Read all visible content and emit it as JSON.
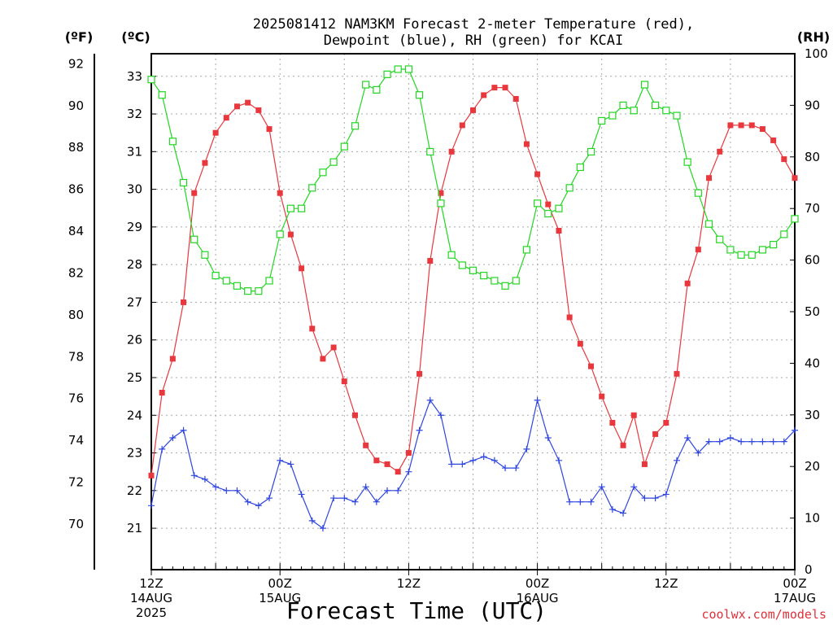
{
  "title": {
    "line1": "2025081412 NAM3KM Forecast 2-meter Temperature (red),",
    "line2": "Dewpoint (blue), RH (green) for KCAI"
  },
  "units": {
    "fahrenheit": "(ºF)",
    "celsius": "(ºC)",
    "rh": "(RH)"
  },
  "xlabel": "Forecast Time (UTC)",
  "credit": "coolwx.com/models",
  "colors": {
    "temperature": "#e8383d",
    "dewpoint": "#2e46e0",
    "rh": "#22d622",
    "grid": "#aaaaaa",
    "axis": "#000000"
  },
  "chart_data": {
    "type": "line",
    "x_hours": [
      0,
      1,
      2,
      3,
      4,
      5,
      6,
      7,
      8,
      9,
      10,
      11,
      12,
      13,
      14,
      15,
      16,
      17,
      18,
      19,
      20,
      21,
      22,
      23,
      24,
      25,
      26,
      27,
      28,
      29,
      30,
      31,
      32,
      33,
      34,
      35,
      36,
      37,
      38,
      39,
      40,
      41,
      42,
      43,
      44,
      45,
      46,
      47,
      48,
      49,
      50,
      51,
      52,
      53,
      54,
      55,
      56,
      57,
      58,
      59,
      60
    ],
    "x_range_hours": [
      0,
      60
    ],
    "x_ticks": [
      {
        "hour": 0,
        "line1": "12Z",
        "line2": "14AUG",
        "line3": "2025"
      },
      {
        "hour": 12,
        "line1": "00Z",
        "line2": "15AUG",
        "line3": ""
      },
      {
        "hour": 24,
        "line1": "12Z",
        "line2": "",
        "line3": ""
      },
      {
        "hour": 36,
        "line1": "00Z",
        "line2": "16AUG",
        "line3": ""
      },
      {
        "hour": 48,
        "line1": "12Z",
        "line2": "",
        "line3": ""
      },
      {
        "hour": 60,
        "line1": "00Z",
        "line2": "17AUG",
        "line3": ""
      }
    ],
    "celsius_axis": {
      "range": [
        19.9,
        33.6
      ],
      "ticks": [
        21,
        22,
        23,
        24,
        25,
        26,
        27,
        28,
        29,
        30,
        31,
        32,
        33
      ]
    },
    "fahrenheit_axis": {
      "ticks": [
        70,
        72,
        74,
        76,
        78,
        80,
        82,
        84,
        86,
        88,
        90,
        92
      ]
    },
    "rh_axis": {
      "range": [
        0,
        100
      ],
      "ticks": [
        0,
        10,
        20,
        30,
        40,
        50,
        60,
        70,
        80,
        90,
        100
      ]
    },
    "series": [
      {
        "name": "Temperature",
        "unit": "C",
        "marker": "filled-square",
        "values": [
          22.4,
          24.6,
          25.5,
          27.0,
          29.9,
          30.7,
          31.5,
          31.9,
          32.2,
          32.3,
          32.1,
          31.6,
          29.9,
          28.8,
          27.9,
          26.3,
          25.5,
          25.8,
          24.9,
          24.0,
          23.2,
          22.8,
          22.7,
          22.5,
          23.0,
          25.1,
          28.1,
          29.9,
          31.0,
          31.7,
          32.1,
          32.5,
          32.7,
          32.7,
          32.4,
          31.2,
          30.4,
          29.6,
          28.9,
          26.6,
          25.9,
          25.3,
          24.5,
          23.8,
          23.2,
          24.0,
          22.7,
          23.5,
          23.8,
          25.1,
          27.5,
          28.4,
          30.3,
          31.0,
          31.7,
          31.7,
          31.7,
          31.6,
          31.3,
          30.8,
          30.3
        ]
      },
      {
        "name": "Dewpoint",
        "unit": "C",
        "marker": "plus",
        "values": [
          21.6,
          23.1,
          23.4,
          23.6,
          22.4,
          22.3,
          22.1,
          22.0,
          22.0,
          21.7,
          21.6,
          21.8,
          22.8,
          22.7,
          21.9,
          21.2,
          21.0,
          21.8,
          21.8,
          21.7,
          22.1,
          21.7,
          22.0,
          22.0,
          22.5,
          23.6,
          24.4,
          24.0,
          22.7,
          22.7,
          22.8,
          22.9,
          22.8,
          22.6,
          22.6,
          23.1,
          24.4,
          23.4,
          22.8,
          21.7,
          21.7,
          21.7,
          22.1,
          21.5,
          21.4,
          22.1,
          21.8,
          21.8,
          21.9,
          22.8,
          23.4,
          23.0,
          23.3,
          23.3,
          23.4,
          23.3,
          23.3,
          23.3,
          23.3,
          23.3,
          23.6
        ]
      },
      {
        "name": "RH",
        "unit": "%",
        "marker": "open-square",
        "values": [
          95,
          92,
          83,
          75,
          64,
          61,
          57,
          56,
          55,
          54,
          54,
          56,
          65,
          70,
          70,
          74,
          77,
          79,
          82,
          86,
          94,
          93,
          96,
          97,
          97,
          92,
          81,
          71,
          61,
          59,
          58,
          57,
          56,
          55,
          56,
          62,
          71,
          69,
          70,
          74,
          78,
          81,
          87,
          88,
          90,
          89,
          94,
          90,
          89,
          88,
          79,
          73,
          67,
          64,
          62,
          61,
          61,
          62,
          63,
          65,
          68
        ]
      }
    ],
    "grid": true
  }
}
